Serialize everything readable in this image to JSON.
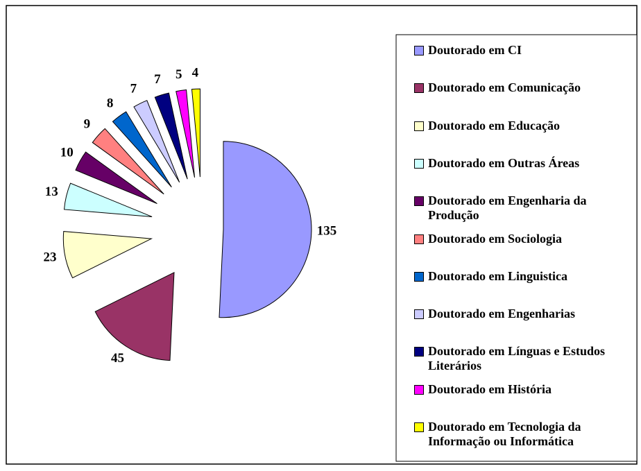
{
  "chart_data": {
    "type": "pie",
    "series": [
      {
        "name": "Doutorado em CI",
        "color": "#9999ff",
        "value": 135
      },
      {
        "name": "Doutorado em Comunicação",
        "color": "#993366",
        "value": 45
      },
      {
        "name": "Doutorado em Educação",
        "color": "#ffffcc",
        "value": 23
      },
      {
        "name": "Doutorado em Outras Áreas",
        "color": "#ccffff",
        "value": 13
      },
      {
        "name": "Doutorado em Engenharia da Produção",
        "color": "#660066",
        "value": 10
      },
      {
        "name": "Doutorado em Sociologia",
        "color": "#ff8080",
        "value": 9
      },
      {
        "name": "Doutorado em Linguistica",
        "color": "#0066cc",
        "value": 8
      },
      {
        "name": "Doutorado em Engenharias",
        "color": "#ccccff",
        "value": 7
      },
      {
        "name": "Doutorado em Línguas e Estudos Literários",
        "color": "#000080",
        "value": 7
      },
      {
        "name": "Doutorado em História",
        "color": "#ff00ff",
        "value": 5
      },
      {
        "name": "Doutorado em Tecnologia da Informação ou Informática",
        "color": "#ffff00",
        "value": 4
      }
    ],
    "legend": "right"
  }
}
